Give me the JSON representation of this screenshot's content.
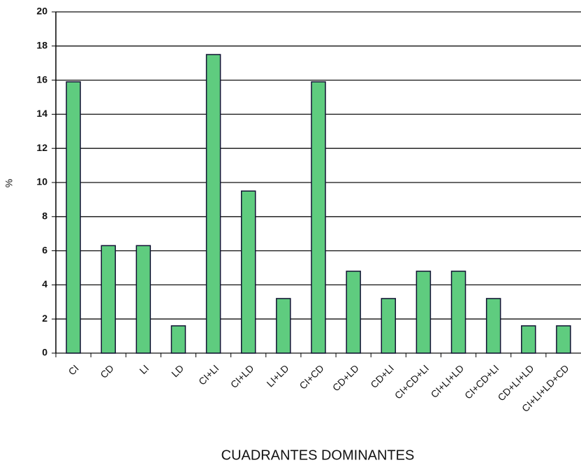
{
  "chart_data": {
    "type": "bar",
    "y_label": "%",
    "x_label": "CUADRANTES DOMINANTES",
    "categories": [
      "CI",
      "CD",
      "LI",
      "LD",
      "CI+LI",
      "CI+LD",
      "LI+LD",
      "CI+CD",
      "CD+LD",
      "CD+LI",
      "CI+CD+LI",
      "CI+LI+LD",
      "CI+CD+LI",
      "CD+LI+LD",
      "CI+LI+LD+CD"
    ],
    "values": [
      15.9,
      6.3,
      6.3,
      1.6,
      17.5,
      9.5,
      3.2,
      15.9,
      4.8,
      3.2,
      4.8,
      4.8,
      3.2,
      1.6,
      1.6
    ],
    "color": "#5fcc7f",
    "ylim": [
      0,
      20
    ],
    "yticks": [
      0,
      2,
      4,
      6,
      8,
      10,
      12,
      14,
      16,
      18,
      20
    ],
    "grid": true
  }
}
